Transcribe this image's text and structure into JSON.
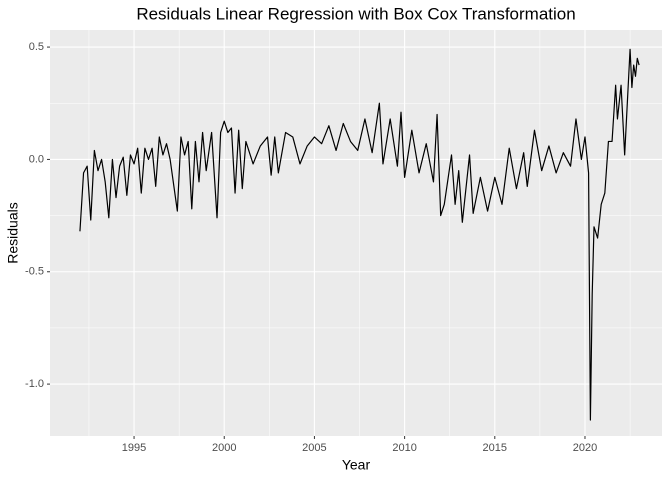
{
  "chart_data": {
    "type": "line",
    "title": "Residuals Linear Regression with Box Cox Transformation",
    "x_label": "Year",
    "y_label": "Residuals",
    "x": [
      1992.0,
      1992.2,
      1992.4,
      1992.6,
      1992.8,
      1993.0,
      1993.2,
      1993.4,
      1993.6,
      1993.8,
      1994.0,
      1994.2,
      1994.4,
      1994.6,
      1994.8,
      1995.0,
      1995.2,
      1995.4,
      1995.6,
      1995.8,
      1996.0,
      1996.2,
      1996.4,
      1996.6,
      1996.8,
      1997.0,
      1997.4,
      1997.6,
      1997.8,
      1998.0,
      1998.2,
      1998.4,
      1998.6,
      1998.8,
      1999.0,
      1999.3,
      1999.6,
      1999.8,
      2000.0,
      2000.2,
      2000.4,
      2000.6,
      2000.8,
      2001.0,
      2001.2,
      2001.6,
      2002.0,
      2002.4,
      2002.6,
      2002.8,
      2003.0,
      2003.4,
      2003.8,
      2004.2,
      2004.6,
      2005.0,
      2005.4,
      2005.8,
      2006.2,
      2006.6,
      2007.0,
      2007.4,
      2007.8,
      2008.2,
      2008.6,
      2008.8,
      2009.2,
      2009.6,
      2009.8,
      2010.0,
      2010.4,
      2010.8,
      2011.2,
      2011.6,
      2011.8,
      2012.0,
      2012.2,
      2012.6,
      2012.8,
      2013.0,
      2013.2,
      2013.6,
      2013.8,
      2014.2,
      2014.6,
      2015.0,
      2015.4,
      2015.8,
      2016.2,
      2016.6,
      2016.8,
      2017.2,
      2017.6,
      2018.0,
      2018.4,
      2018.8,
      2019.2,
      2019.5,
      2019.8,
      2020.0,
      2020.2,
      2020.3,
      2020.4,
      2020.5,
      2020.7,
      2020.9,
      2021.1,
      2021.3,
      2021.5,
      2021.7,
      2021.8,
      2022.0,
      2022.2,
      2022.5,
      2022.6,
      2022.7,
      2022.8,
      2022.9,
      2023.0
    ],
    "series": [
      {
        "color": "#000000",
        "values": [
          -0.32,
          -0.06,
          -0.03,
          -0.27,
          0.04,
          -0.05,
          0.0,
          -0.1,
          -0.26,
          0.0,
          -0.17,
          -0.03,
          0.01,
          -0.16,
          0.02,
          -0.02,
          0.05,
          -0.15,
          0.05,
          0.0,
          0.05,
          -0.12,
          0.1,
          0.02,
          0.07,
          0.0,
          -0.23,
          0.1,
          0.02,
          0.08,
          -0.22,
          0.08,
          -0.1,
          0.12,
          -0.05,
          0.12,
          -0.26,
          0.12,
          0.17,
          0.12,
          0.14,
          -0.15,
          0.13,
          -0.13,
          0.08,
          -0.02,
          0.06,
          0.1,
          -0.07,
          0.1,
          -0.06,
          0.12,
          0.1,
          -0.02,
          0.06,
          0.1,
          0.07,
          0.15,
          0.04,
          0.16,
          0.08,
          0.04,
          0.18,
          0.03,
          0.25,
          -0.02,
          0.18,
          -0.03,
          0.21,
          -0.08,
          0.13,
          -0.06,
          0.07,
          -0.1,
          0.2,
          -0.25,
          -0.2,
          0.02,
          -0.2,
          -0.05,
          -0.28,
          0.02,
          -0.24,
          -0.08,
          -0.23,
          -0.08,
          -0.2,
          0.05,
          -0.13,
          0.03,
          -0.12,
          0.13,
          -0.05,
          0.06,
          -0.06,
          0.03,
          -0.03,
          0.18,
          0.0,
          0.1,
          -0.06,
          -1.16,
          -0.6,
          -0.3,
          -0.35,
          -0.2,
          -0.15,
          0.08,
          0.08,
          0.33,
          0.18,
          0.33,
          0.02,
          0.49,
          0.32,
          0.42,
          0.37,
          0.45,
          0.42
        ]
      }
    ],
    "xlim": [
      1990.34,
      2024.27
    ],
    "ylim": [
      -1.231,
      0.576
    ],
    "xticks": [
      1995,
      2000,
      2005,
      2010,
      2015,
      2020
    ],
    "yticks": [
      {
        "value": -1.0,
        "label": "-1.0"
      },
      -0.5,
      {
        "value": 0.0,
        "label": "0.0"
      },
      0.5
    ],
    "xminorticks": [
      1992.5,
      1997.5,
      2002.5,
      2007.5,
      2012.5,
      2017.5,
      2022.5
    ],
    "yminorticks": [
      -0.75,
      -0.25,
      0.25
    ],
    "grid": true
  }
}
